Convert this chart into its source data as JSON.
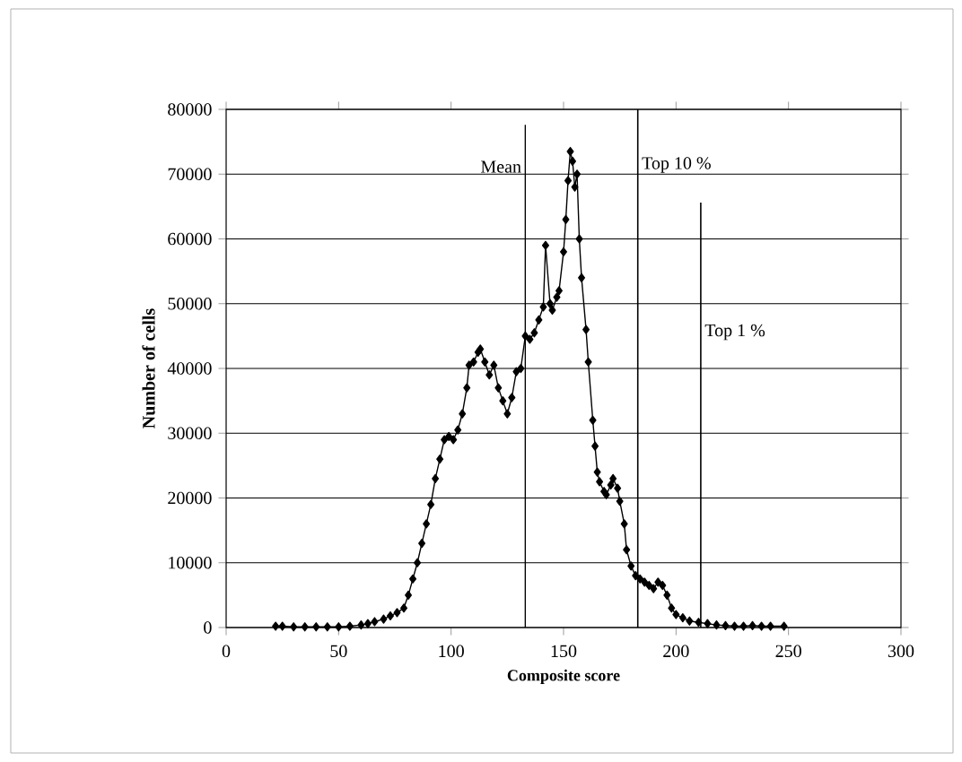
{
  "chart_data": {
    "type": "line",
    "xlabel": "Composite score",
    "ylabel": "Number of cells",
    "xlim": [
      0,
      300
    ],
    "ylim": [
      0,
      80000
    ],
    "xticks": [
      0,
      50,
      100,
      150,
      200,
      250,
      300
    ],
    "yticks": [
      0,
      10000,
      20000,
      30000,
      40000,
      50000,
      60000,
      70000,
      80000
    ],
    "grid": "y",
    "marker": "diamond",
    "line_style": "solid",
    "series": [
      {
        "color": "#000000",
        "x": [
          22,
          25,
          30,
          35,
          40,
          45,
          50,
          55,
          60,
          63,
          66,
          70,
          73,
          76,
          79,
          81,
          83,
          85,
          87,
          89,
          91,
          93,
          95,
          97,
          99,
          101,
          103,
          105,
          107,
          108,
          110,
          112,
          113,
          115,
          117,
          119,
          121,
          123,
          125,
          127,
          129,
          131,
          133,
          135,
          137,
          139,
          141,
          142,
          144,
          145,
          147,
          148,
          150,
          151,
          152,
          153,
          154,
          155,
          156,
          157,
          158,
          160,
          161,
          163,
          164,
          165,
          166,
          168,
          169,
          171,
          172,
          174,
          175,
          177,
          178,
          180,
          182,
          184,
          186,
          188,
          190,
          192,
          194,
          196,
          198,
          200,
          203,
          206,
          210,
          214,
          218,
          222,
          226,
          230,
          234,
          238,
          242,
          248
        ],
        "values": [
          200,
          200,
          100,
          100,
          100,
          100,
          100,
          200,
          400,
          600,
          900,
          1300,
          1800,
          2300,
          3000,
          5000,
          7500,
          10000,
          13000,
          16000,
          19000,
          23000,
          26000,
          29000,
          29500,
          29000,
          30500,
          33000,
          37000,
          40500,
          41000,
          42500,
          43000,
          41000,
          39000,
          40500,
          37000,
          35000,
          33000,
          35500,
          39500,
          40000,
          45000,
          44500,
          45500,
          47500,
          49500,
          59000,
          50000,
          49000,
          51000,
          52000,
          58000,
          63000,
          69000,
          73500,
          72000,
          68000,
          70000,
          60000,
          54000,
          46000,
          41000,
          32000,
          28000,
          24000,
          22500,
          21000,
          20500,
          22000,
          23000,
          21500,
          19500,
          16000,
          12000,
          9500,
          8000,
          7500,
          7000,
          6500,
          6000,
          7000,
          6500,
          5000,
          3000,
          2000,
          1500,
          1000,
          800,
          600,
          400,
          300,
          200,
          200,
          300,
          200,
          200,
          200
        ]
      }
    ],
    "ref_lines": [
      {
        "axis": "x",
        "value": 133,
        "label": "Mean",
        "color": "#000000"
      },
      {
        "axis": "x",
        "value": 183,
        "label": "Top 10 %",
        "color": "#000000"
      },
      {
        "axis": "x",
        "value": 211,
        "label": "Top 1 %",
        "color": "#000000"
      }
    ]
  }
}
